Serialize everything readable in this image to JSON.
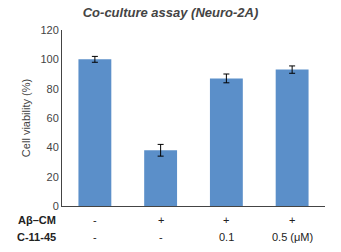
{
  "chart_data": {
    "type": "bar",
    "title": "Co-culture assay (Neuro-2A)",
    "ylabel": "Cell viability (%)",
    "categories": [
      null,
      null,
      null,
      null
    ],
    "values": [
      100,
      38,
      87,
      93
    ],
    "errors": [
      2,
      4,
      3,
      2.5
    ],
    "color": "#5b8fc9",
    "ylim": [
      0,
      120
    ],
    "yticks": [
      0,
      20,
      40,
      60,
      80,
      100,
      120
    ],
    "grid": false,
    "tick_labels": "y",
    "annotations": [
      {
        "label": "Aβ–CM",
        "texts": [
          "-",
          "+",
          "+",
          "+"
        ]
      },
      {
        "label": "C-11-45",
        "texts": [
          "-",
          "-",
          "0.1",
          "0.5 (μM)"
        ]
      }
    ]
  }
}
